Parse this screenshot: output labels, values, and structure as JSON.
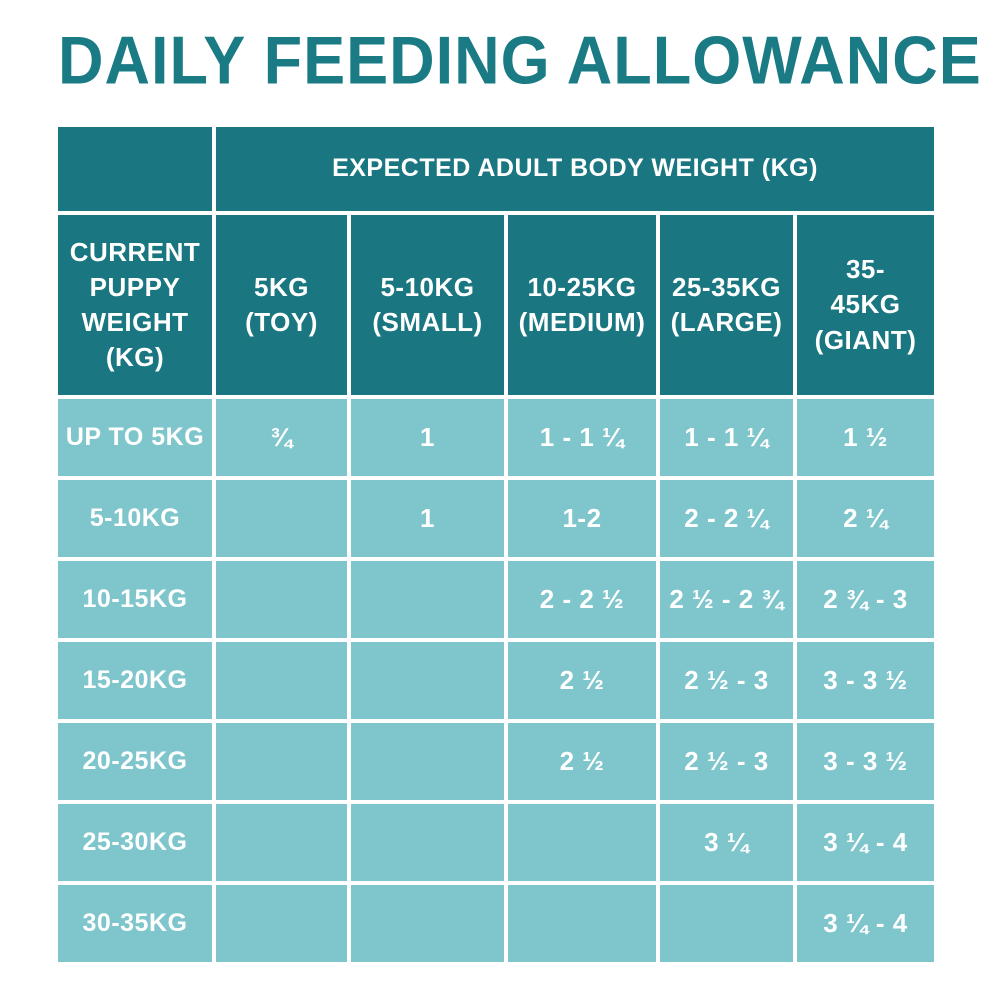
{
  "title": "DAILY FEEDING ALLOWANCE",
  "colors": {
    "title_teal": "#1a7b85",
    "header_dark_teal": "#1a7680",
    "cell_light_teal": "#7fc6cc",
    "cell_text": "#ffffff",
    "background": "#ffffff"
  },
  "table": {
    "top_header": "EXPECTED ADULT BODY WEIGHT (KG)",
    "row_header": "CURRENT PUPPY WEIGHT (KG)",
    "columns": [
      "5KG (TOY)",
      "5-10KG (SMALL)",
      "10-25KG (MEDIUM)",
      "25-35KG (LARGE)",
      "35-45KG (GIANT)"
    ],
    "rows": [
      {
        "label": "UP TO 5KG",
        "values": [
          "¾",
          "1",
          "1 - 1 ¼",
          "1 - 1 ¼",
          "1 ½"
        ]
      },
      {
        "label": "5-10KG",
        "values": [
          "",
          "1",
          "1-2",
          "2 - 2 ¼",
          "2 ¼"
        ]
      },
      {
        "label": "10-15KG",
        "values": [
          "",
          "",
          "2 - 2 ½",
          "2 ½ - 2 ¾",
          "2 ¾ - 3"
        ]
      },
      {
        "label": "15-20KG",
        "values": [
          "",
          "",
          "2 ½",
          "2 ½ - 3",
          "3 - 3 ½"
        ]
      },
      {
        "label": "20-25KG",
        "values": [
          "",
          "",
          "2 ½",
          "2 ½ - 3",
          "3 - 3 ½"
        ]
      },
      {
        "label": "25-30KG",
        "values": [
          "",
          "",
          "",
          "3 ¼",
          "3 ¼ - 4"
        ]
      },
      {
        "label": "30-35KG",
        "values": [
          "",
          "",
          "",
          "",
          "3 ¼ - 4"
        ]
      }
    ]
  }
}
